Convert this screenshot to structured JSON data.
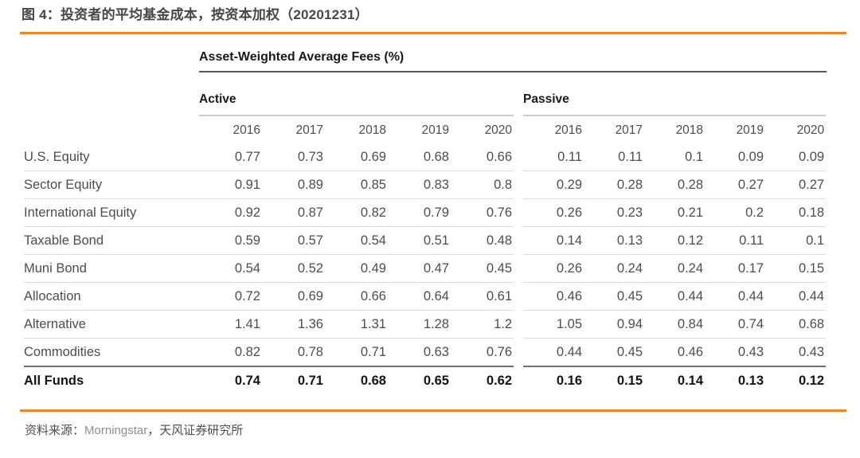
{
  "figure": {
    "title": "图 4：投资者的平均基金成本，按资本加权（20201231）",
    "source_prefix": "资料来源：",
    "source_org": "Morningstar",
    "source_suffix": "，天风证券研究所"
  },
  "colors": {
    "accent_orange": "#F28322",
    "title_rule_dark": "#595959",
    "group_rule_gray": "#CBCBCB",
    "row_rule_gray": "#DCDCDC",
    "total_rule_dark": "#6E6E6E",
    "title_text": "#474747",
    "body_text": "#4D4D4D",
    "bold_text": "#141414",
    "source_org_text": "#8E8E8E"
  },
  "table": {
    "header": "Asset-Weighted Average Fees (%)",
    "groups": [
      {
        "label": "Active"
      },
      {
        "label": "Passive"
      }
    ],
    "years": [
      "2016",
      "2017",
      "2018",
      "2019",
      "2020"
    ],
    "rows": [
      {
        "label": "U.S. Equity",
        "bold": false,
        "active": [
          "0.77",
          "0.73",
          "0.69",
          "0.68",
          "0.66"
        ],
        "passive": [
          "0.11",
          "0.11",
          "0.1",
          "0.09",
          "0.09"
        ]
      },
      {
        "label": "Sector Equity",
        "bold": false,
        "active": [
          "0.91",
          "0.89",
          "0.85",
          "0.83",
          "0.8"
        ],
        "passive": [
          "0.29",
          "0.28",
          "0.28",
          "0.27",
          "0.27"
        ]
      },
      {
        "label": "International Equity",
        "bold": false,
        "active": [
          "0.92",
          "0.87",
          "0.82",
          "0.79",
          "0.76"
        ],
        "passive": [
          "0.26",
          "0.23",
          "0.21",
          "0.2",
          "0.18"
        ]
      },
      {
        "label": "Taxable Bond",
        "bold": false,
        "active": [
          "0.59",
          "0.57",
          "0.54",
          "0.51",
          "0.48"
        ],
        "passive": [
          "0.14",
          "0.13",
          "0.12",
          "0.11",
          "0.1"
        ]
      },
      {
        "label": "Muni Bond",
        "bold": false,
        "active": [
          "0.54",
          "0.52",
          "0.49",
          "0.47",
          "0.45"
        ],
        "passive": [
          "0.26",
          "0.24",
          "0.24",
          "0.17",
          "0.15"
        ]
      },
      {
        "label": "Allocation",
        "bold": false,
        "active": [
          "0.72",
          "0.69",
          "0.66",
          "0.64",
          "0.61"
        ],
        "passive": [
          "0.46",
          "0.45",
          "0.44",
          "0.44",
          "0.44"
        ]
      },
      {
        "label": "Alternative",
        "bold": false,
        "active": [
          "1.41",
          "1.36",
          "1.31",
          "1.28",
          "1.2"
        ],
        "passive": [
          "1.05",
          "0.94",
          "0.84",
          "0.74",
          "0.68"
        ]
      },
      {
        "label": "Commodities",
        "bold": false,
        "active": [
          "0.82",
          "0.78",
          "0.71",
          "0.63",
          "0.76"
        ],
        "passive": [
          "0.44",
          "0.45",
          "0.46",
          "0.43",
          "0.43"
        ]
      },
      {
        "label": "All Funds",
        "bold": true,
        "active": [
          "0.74",
          "0.71",
          "0.68",
          "0.65",
          "0.62"
        ],
        "passive": [
          "0.16",
          "0.15",
          "0.14",
          "0.13",
          "0.12"
        ]
      }
    ]
  }
}
